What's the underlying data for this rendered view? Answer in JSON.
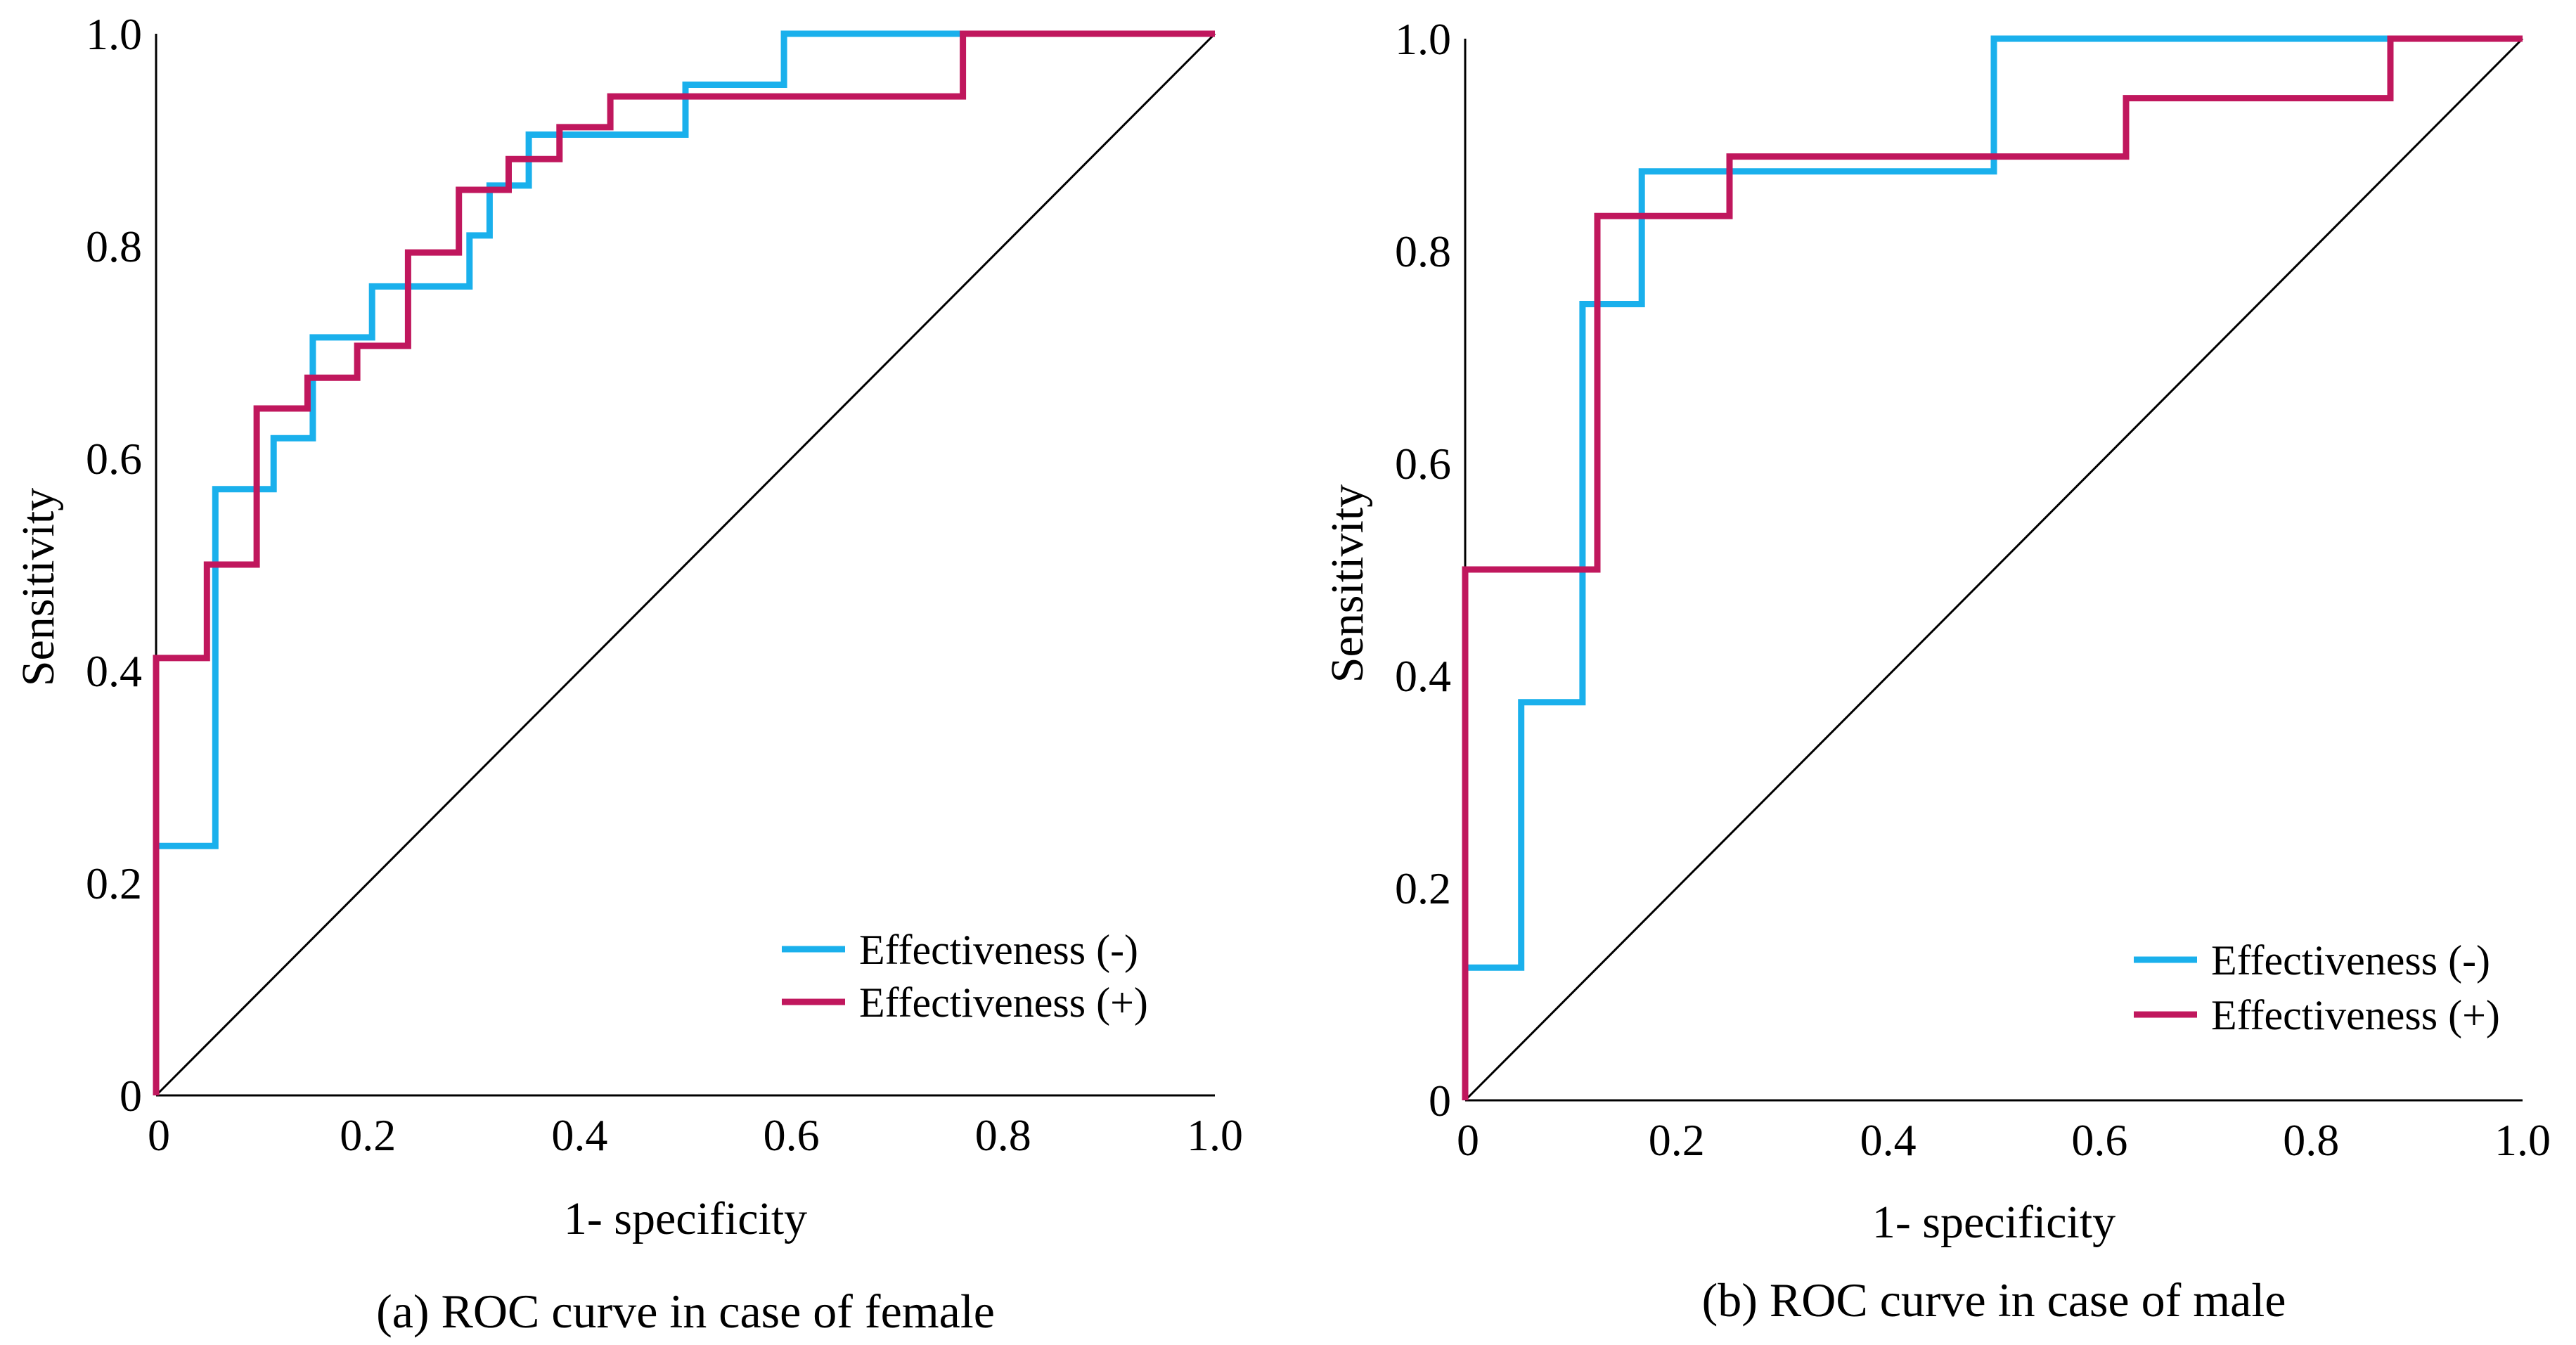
{
  "chart_data": [
    {
      "type": "line",
      "subtype": "roc-step",
      "caption": "(a) ROC curve in case of female",
      "xlabel": "1- specificity",
      "ylabel": "Sensitivity",
      "xlim": [
        0,
        1.0
      ],
      "ylim": [
        0,
        1.0
      ],
      "xticks": [
        "0",
        "0.2",
        "0.4",
        "0.6",
        "0.8",
        "1.0"
      ],
      "yticks": [
        "0",
        "0.2",
        "0.4",
        "0.6",
        "0.8",
        "1.0"
      ],
      "grid": false,
      "legend_position": "bottom-right",
      "reference_line": {
        "name": "diagonal",
        "x": [
          0,
          1
        ],
        "y": [
          0,
          1
        ],
        "color": "#000000"
      },
      "series": [
        {
          "name": "Effectiveness (-)",
          "color": "#1ab0ec",
          "x": [
            0,
            0,
            0.056,
            0.056,
            0.111,
            0.111,
            0.148,
            0.148,
            0.204,
            0.204,
            0.296,
            0.296,
            0.315,
            0.315,
            0.352,
            0.352,
            0.5,
            0.5,
            0.593,
            0.593,
            1.0
          ],
          "y": [
            0,
            0.235,
            0.235,
            0.571,
            0.571,
            0.619,
            0.619,
            0.714,
            0.714,
            0.762,
            0.762,
            0.81,
            0.81,
            0.857,
            0.857,
            0.905,
            0.905,
            0.952,
            0.952,
            1.0,
            1.0
          ]
        },
        {
          "name": "Effectiveness (+)",
          "color": "#c0175d",
          "x": [
            0,
            0,
            0.048,
            0.048,
            0.095,
            0.095,
            0.143,
            0.143,
            0.19,
            0.19,
            0.238,
            0.238,
            0.286,
            0.286,
            0.333,
            0.333,
            0.381,
            0.381,
            0.429,
            0.429,
            0.762,
            0.762,
            1.0
          ],
          "y": [
            0,
            0.412,
            0.412,
            0.5,
            0.5,
            0.647,
            0.647,
            0.676,
            0.676,
            0.706,
            0.706,
            0.794,
            0.794,
            0.853,
            0.853,
            0.882,
            0.882,
            0.912,
            0.912,
            0.941,
            0.941,
            1.0,
            1.0
          ]
        }
      ]
    },
    {
      "type": "line",
      "subtype": "roc-step",
      "caption": "(b) ROC curve in case of male",
      "xlabel": "1- specificity",
      "ylabel": "Sensitivity",
      "xlim": [
        0,
        1.0
      ],
      "ylim": [
        0,
        1.0
      ],
      "xticks": [
        "0",
        "0.2",
        "0.4",
        "0.6",
        "0.8",
        "1.0"
      ],
      "yticks": [
        "0",
        "0.2",
        "0.4",
        "0.6",
        "0.8",
        "1.0"
      ],
      "grid": false,
      "legend_position": "bottom-right",
      "reference_line": {
        "name": "diagonal",
        "x": [
          0,
          1
        ],
        "y": [
          0,
          1
        ],
        "color": "#000000"
      },
      "series": [
        {
          "name": "Effectiveness (-)",
          "color": "#1ab0ec",
          "x": [
            0,
            0,
            0.053,
            0.053,
            0.111,
            0.111,
            0.167,
            0.167,
            0.5,
            0.5,
            1.0
          ],
          "y": [
            0,
            0.125,
            0.125,
            0.375,
            0.375,
            0.75,
            0.75,
            0.875,
            0.875,
            1.0,
            1.0
          ]
        },
        {
          "name": "Effectiveness (+)",
          "color": "#c0175d",
          "x": [
            0,
            0,
            0.125,
            0.125,
            0.25,
            0.25,
            0.625,
            0.625,
            0.875,
            0.875,
            1.0
          ],
          "y": [
            0,
            0.5,
            0.5,
            0.833,
            0.833,
            0.889,
            0.889,
            0.944,
            0.944,
            1.0,
            1.0
          ]
        }
      ]
    }
  ]
}
